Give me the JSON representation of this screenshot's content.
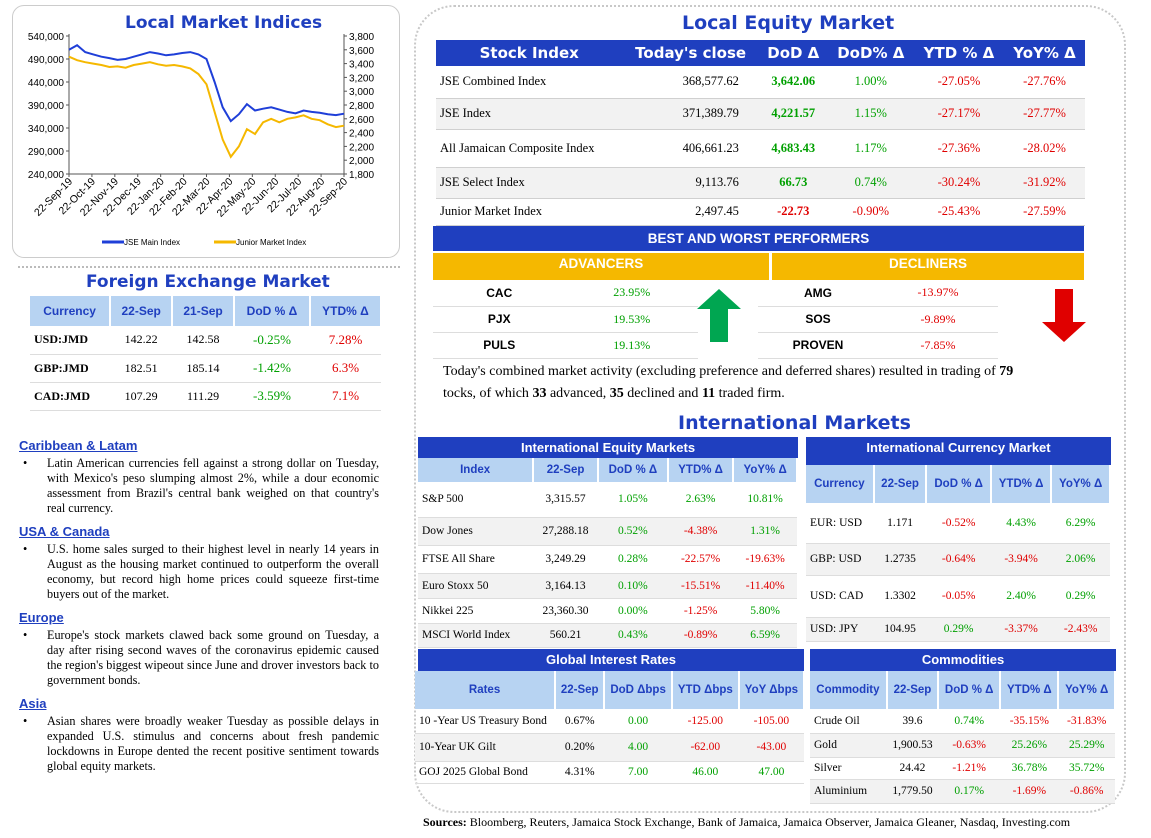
{
  "chart": {
    "title": "Local Market Indices",
    "left_axis": [
      "540,000",
      "490,000",
      "440,000",
      "390,000",
      "340,000",
      "290,000",
      "240,000"
    ],
    "right_axis": [
      "3,800",
      "3,600",
      "3,400",
      "3,200",
      "3,000",
      "2,800",
      "2,600",
      "2,400",
      "2,200",
      "2,000",
      "1,800"
    ],
    "x_labels": [
      "22-Sep-19",
      "22-Oct-19",
      "22-Nov-19",
      "22-Dec-19",
      "22-Jan-20",
      "22-Feb-20",
      "22-Mar-20",
      "22-Apr-20",
      "22-May-20",
      "22-Jun-20",
      "22-Jul-20",
      "22-Aug-20",
      "22-Sep-20"
    ],
    "legend": [
      "JSE Main Index",
      "Junior Market Index"
    ],
    "colors": {
      "main": "#1f3fd8",
      "junior": "#f5b800"
    }
  },
  "chart_data": {
    "type": "line",
    "x": [
      "22-Sep-19",
      "22-Oct-19",
      "22-Nov-19",
      "22-Dec-19",
      "22-Jan-20",
      "22-Feb-20",
      "22-Mar-20",
      "22-Apr-20",
      "22-May-20",
      "22-Jun-20",
      "22-Jul-20",
      "22-Aug-20",
      "22-Sep-20"
    ],
    "series": [
      {
        "name": "JSE Main Index",
        "axis": "left",
        "values": [
          510000,
          495000,
          490000,
          505000,
          500000,
          505000,
          360000,
          385000,
          380000,
          372000,
          375000,
          370000,
          371000
        ]
      },
      {
        "name": "Junior Market Index",
        "axis": "right",
        "values": [
          3500,
          3400,
          3350,
          3400,
          3380,
          3300,
          2100,
          2500,
          2600,
          2600,
          2650,
          2600,
          2500
        ]
      }
    ],
    "ylim_left": [
      240000,
      540000
    ],
    "ylim_right": [
      1800,
      3800
    ]
  },
  "fx": {
    "title": "Foreign Exchange Market",
    "headers": [
      "Currency",
      "22-Sep",
      "21-Sep",
      "DoD % Δ",
      "YTD% Δ"
    ],
    "rows": [
      [
        "USD:JMD",
        "142.22",
        "142.58",
        "-0.25%",
        "7.28%"
      ],
      [
        "GBP:JMD",
        "182.51",
        "185.14",
        "-1.42%",
        "6.3%"
      ],
      [
        "CAD:JMD",
        "107.29",
        "111.29",
        "-3.59%",
        "7.1%"
      ]
    ]
  },
  "news": [
    {
      "title": "Caribbean & Latam",
      "text": "Latin American currencies fell against a strong dollar on Tuesday, with Mexico's peso slumping almost 2%, while a dour economic assessment from Brazil's central bank weighed on that country's real currency."
    },
    {
      "title": "USA & Canada",
      "text": "U.S. home sales surged to their highest level in nearly 14 years in August as the housing market continued to outperform the overall economy, but record high home prices could squeeze first-time buyers out of the market."
    },
    {
      "title": "Europe",
      "text": "Europe's stock markets clawed back some ground on Tuesday, a day after rising second waves of the coronavirus epidemic caused the region's biggest wipeout since June and drover investors back to government bonds."
    },
    {
      "title": "Asia",
      "text": "Asian shares were broadly weaker Tuesday as possible delays in expanded U.S. stimulus and concerns about fresh pandemic lockdowns in Europe dented the recent positive sentiment towards global equity markets."
    }
  ],
  "equity": {
    "title": "Local Equity Market",
    "headers": [
      "Stock Index",
      "Today's close",
      "DoD  Δ",
      "DoD% Δ",
      "YTD % Δ",
      "YoY% Δ"
    ],
    "rows": [
      [
        "JSE Combined Index",
        "368,577.62",
        "3,642.06",
        "1.00%",
        "-27.05%",
        "-27.76%"
      ],
      [
        "JSE Index",
        "371,389.79",
        "4,221.57",
        "1.15%",
        "-27.17%",
        "-27.77%"
      ],
      [
        "All Jamaican Composite Index",
        "406,661.23",
        "4,683.43",
        "1.17%",
        "-27.36%",
        "-28.02%"
      ],
      [
        "JSE Select Index",
        "9,113.76",
        "66.73",
        "0.74%",
        "-30.24%",
        "-31.92%"
      ],
      [
        "Junior Market Index",
        "2,497.45",
        "-22.73",
        "-0.90%",
        "-25.43%",
        "-27.59%"
      ]
    ]
  },
  "performers": {
    "title": "BEST AND WORST PERFORMERS",
    "adv_label": "ADVANCERS",
    "dec_label": "DECLINERS",
    "advancers": [
      [
        "CAC",
        "23.95%"
      ],
      [
        "PJX",
        "19.53%"
      ],
      [
        "PULS",
        "19.13%"
      ]
    ],
    "decliners": [
      [
        "AMG",
        "-13.97%"
      ],
      [
        "SOS",
        "-9.89%"
      ],
      [
        "PROVEN",
        "-7.85%"
      ]
    ]
  },
  "summary": {
    "line1": "Today's combined market activity (excluding preference and deferred shares) resulted in trading of ",
    "total": "79",
    "line2": "tocks, of which ",
    "advanced": "33",
    "mid1": " advanced, ",
    "declined": "35",
    "mid2": " declined and ",
    "flat": "11",
    "end": " traded firm."
  },
  "intl": {
    "title": "International Markets",
    "equity": {
      "title": "International Equity Markets",
      "headers": [
        "Index",
        "22-Sep",
        "DoD % Δ",
        "YTD% Δ",
        "YoY% Δ"
      ],
      "rows": [
        [
          "S&P 500",
          "3,315.57",
          "1.05%",
          "2.63%",
          "10.81%"
        ],
        [
          "Dow Jones",
          "27,288.18",
          "0.52%",
          "-4.38%",
          "1.31%"
        ],
        [
          "FTSE All Share",
          "3,249.29",
          "0.28%",
          "-22.57%",
          "-19.63%"
        ],
        [
          "Euro Stoxx 50",
          "3,164.13",
          "0.10%",
          "-15.51%",
          "-11.40%"
        ],
        [
          "Nikkei 225",
          "23,360.30",
          "0.00%",
          "-1.25%",
          "5.80%"
        ],
        [
          "MSCI World Index",
          "560.21",
          "0.43%",
          "-0.89%",
          "6.59%"
        ]
      ]
    },
    "currency": {
      "title": "International Currency Market",
      "headers": [
        "Currency",
        "22-Sep",
        "DoD % Δ",
        "YTD% Δ",
        "YoY% Δ"
      ],
      "rows": [
        [
          "EUR: USD",
          "1.171",
          "-0.52%",
          "4.43%",
          "6.29%"
        ],
        [
          "GBP: USD",
          "1.2735",
          "-0.64%",
          "-3.94%",
          "2.06%"
        ],
        [
          "USD: CAD",
          "1.3302",
          "-0.05%",
          "2.40%",
          "0.29%"
        ],
        [
          "USD: JPY",
          "104.95",
          "0.29%",
          "-3.37%",
          "-2.43%"
        ]
      ]
    },
    "rates": {
      "title": "Global Interest Rates",
      "headers": [
        "Rates",
        "22-Sep",
        "DoD Δbps",
        "YTD Δbps",
        "YoY Δbps"
      ],
      "rows": [
        [
          "10 -Year US Treasury Bond",
          "0.67%",
          "0.00",
          "-125.00",
          "-105.00"
        ],
        [
          "10-Year UK Gilt",
          "0.20%",
          "4.00",
          "-62.00",
          "-43.00"
        ],
        [
          "GOJ 2025 Global Bond",
          "4.31%",
          "7.00",
          "46.00",
          "47.00"
        ]
      ]
    },
    "commodities": {
      "title": "Commodities",
      "headers": [
        "Commodity",
        "22-Sep",
        "DoD % Δ",
        "YTD% Δ",
        "YoY% Δ"
      ],
      "rows": [
        [
          "Crude Oil",
          "39.6",
          "0.74%",
          "-35.15%",
          "-31.83%"
        ],
        [
          "Gold",
          "1,900.53",
          "-0.63%",
          "25.26%",
          "25.29%"
        ],
        [
          "Silver",
          "24.42",
          "-1.21%",
          "36.78%",
          "35.72%"
        ],
        [
          "Aluminium",
          "1,779.50",
          "0.17%",
          "-1.69%",
          "-0.86%"
        ]
      ]
    }
  },
  "sources_label": "Sources:",
  "sources_text": " Bloomberg, Reuters, Jamaica Stock Exchange, Bank of Jamaica, Jamaica Observer, Jamaica Gleaner, Nasdaq, Investing.com"
}
